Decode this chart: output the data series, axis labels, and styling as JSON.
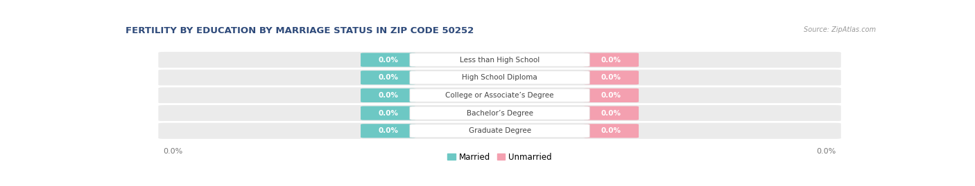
{
  "title": "FERTILITY BY EDUCATION BY MARRIAGE STATUS IN ZIP CODE 50252",
  "source": "Source: ZipAtlas.com",
  "categories": [
    "Less than High School",
    "High School Diploma",
    "College or Associate’s Degree",
    "Bachelor’s Degree",
    "Graduate Degree"
  ],
  "married_values": [
    0.0,
    0.0,
    0.0,
    0.0,
    0.0
  ],
  "unmarried_values": [
    0.0,
    0.0,
    0.0,
    0.0,
    0.0
  ],
  "married_color": "#6dc8c4",
  "unmarried_color": "#f4a0b0",
  "row_bg_color": "#ebebeb",
  "title_color": "#2e4a7a",
  "source_color": "#999999",
  "value_label_color": "white",
  "category_label_color": "#444444",
  "axis_label_color": "#777777",
  "value_label_married": "0.0%",
  "value_label_unmarried": "0.0%",
  "axis_label_left": "0.0%",
  "axis_label_right": "0.0%",
  "legend_married": "Married",
  "legend_unmarried": "Unmarried",
  "figsize": [
    14.06,
    2.69
  ],
  "dpi": 100
}
